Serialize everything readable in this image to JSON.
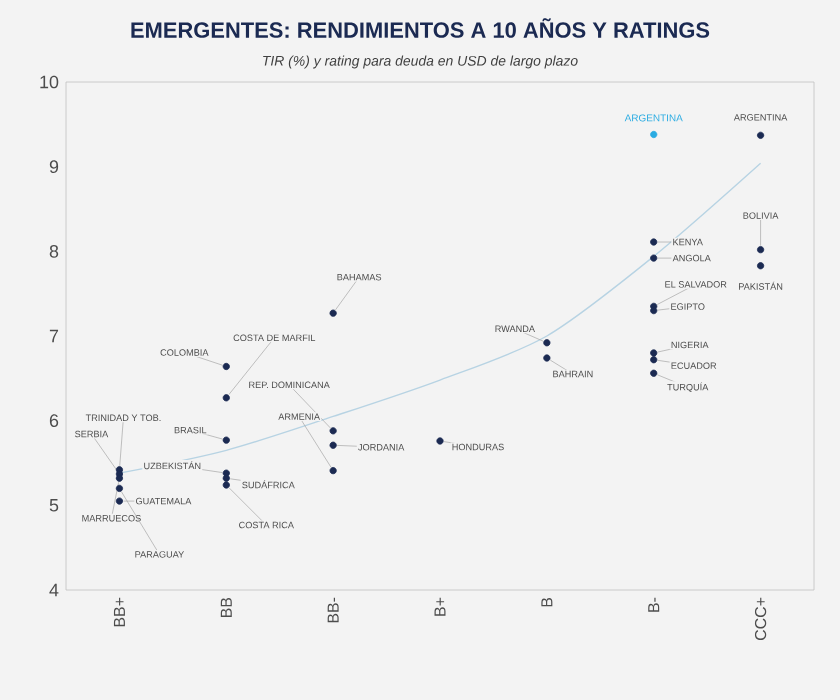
{
  "chart_data": {
    "type": "scatter",
    "title": "EMERGENTES: RENDIMIENTOS A 10 AÑOS Y RATINGS",
    "subtitle": "TIR (%) y rating para deuda en USD de largo plazo",
    "categories": [
      "BB+",
      "BB",
      "BB-",
      "B+",
      "B",
      "B-",
      "CCC+"
    ],
    "ylim": [
      4,
      10
    ],
    "yticks": [
      4,
      5,
      6,
      7,
      8,
      9,
      10
    ],
    "marker": "circle",
    "series": [
      {
        "color": "#1b2a52",
        "x": [
          "BB+",
          "BB+",
          "BB+",
          "BB+",
          "BB+",
          "BB",
          "BB",
          "BB",
          "BB",
          "BB",
          "BB",
          "BB-",
          "BB-",
          "BB-",
          "BB-",
          "B+",
          "B",
          "B",
          "B-",
          "B-",
          "B-",
          "B-",
          "B-",
          "B-",
          "B-",
          "CCC+",
          "CCC+",
          "CCC+"
        ],
        "values": [
          5.42,
          5.37,
          5.32,
          5.2,
          5.05,
          6.64,
          6.27,
          5.77,
          5.38,
          5.32,
          5.24,
          7.27,
          5.88,
          5.41,
          5.71,
          5.76,
          6.92,
          6.74,
          8.11,
          7.92,
          7.35,
          7.3,
          6.8,
          6.72,
          6.56,
          9.37,
          8.02,
          7.83
        ]
      },
      {
        "name": "ARGENTINA",
        "color": "#29abe2",
        "x": [
          "B-"
        ],
        "values": [
          9.38
        ]
      },
      {
        "type": "line",
        "marker": "none",
        "color": "#b7d3e3",
        "x": [
          "BB+",
          "BB",
          "BB-",
          "B+",
          "B",
          "B-",
          "CCC+"
        ],
        "values": [
          5.38,
          5.65,
          6.05,
          6.48,
          7.0,
          7.94,
          9.04
        ]
      }
    ],
    "annotations": [
      {
        "text": "TRINIDAD Y TOB.",
        "x": "BB+",
        "y": 5.42
      },
      {
        "text": "SERBIA",
        "x": "BB+",
        "y": 5.37
      },
      {
        "text": "MARRUECOS",
        "x": "BB+",
        "y": 5.32
      },
      {
        "text": "PARAGUAY",
        "x": "BB+",
        "y": 5.2
      },
      {
        "text": "GUATEMALA",
        "x": "BB+",
        "y": 5.05
      },
      {
        "text": "COLOMBIA",
        "x": "BB",
        "y": 6.64
      },
      {
        "text": "COSTA DE MARFIL",
        "x": "BB",
        "y": 6.27
      },
      {
        "text": "BRASIL",
        "x": "BB",
        "y": 5.77
      },
      {
        "text": "UZBEKISTÁN",
        "x": "BB",
        "y": 5.38
      },
      {
        "text": "SUDÁFRICA",
        "x": "BB",
        "y": 5.32
      },
      {
        "text": "COSTA RICA",
        "x": "BB",
        "y": 5.24
      },
      {
        "text": "BAHAMAS",
        "x": "BB-",
        "y": 7.27
      },
      {
        "text": "REP. DOMINICANA",
        "x": "BB-",
        "y": 5.88
      },
      {
        "text": "ARMENIA",
        "x": "BB-",
        "y": 5.41
      },
      {
        "text": "JORDANIA",
        "x": "BB-",
        "y": 5.71
      },
      {
        "text": "HONDURAS",
        "x": "B+",
        "y": 5.76
      },
      {
        "text": "RWANDA",
        "x": "B",
        "y": 6.92
      },
      {
        "text": "BAHRAIN",
        "x": "B",
        "y": 6.74
      },
      {
        "text": "KENYA",
        "x": "B-",
        "y": 8.11
      },
      {
        "text": "ANGOLA",
        "x": "B-",
        "y": 7.92
      },
      {
        "text": "EL SALVADOR",
        "x": "B-",
        "y": 7.35
      },
      {
        "text": "EGIPTO",
        "x": "B-",
        "y": 7.3
      },
      {
        "text": "NIGERIA",
        "x": "B-",
        "y": 6.8
      },
      {
        "text": "ECUADOR",
        "x": "B-",
        "y": 6.72
      },
      {
        "text": "TURQUÍA",
        "x": "B-",
        "y": 6.56
      },
      {
        "text": "ARGENTINA",
        "x": "CCC+",
        "y": 9.37
      },
      {
        "text": "BOLIVIA",
        "x": "CCC+",
        "y": 8.02
      },
      {
        "text": "PAKISTÁN",
        "x": "CCC+",
        "y": 7.83
      }
    ]
  }
}
